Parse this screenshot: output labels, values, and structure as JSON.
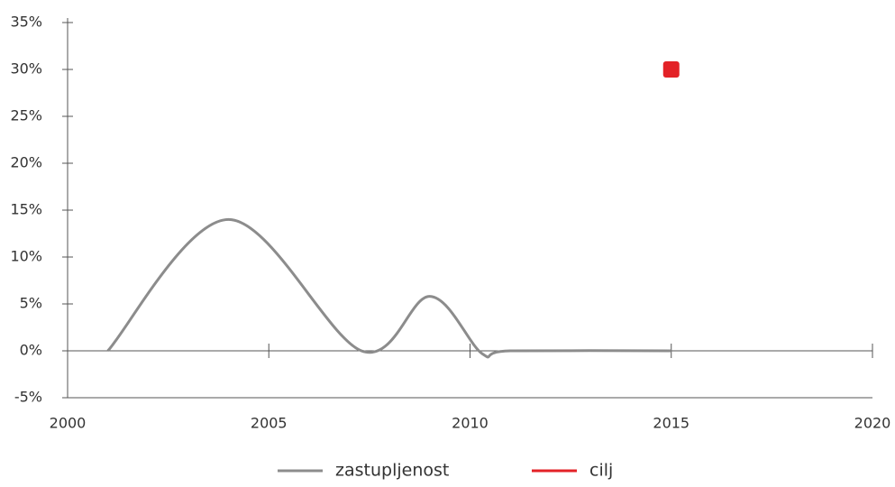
{
  "chart_data": {
    "type": "line",
    "xlim": [
      2000,
      2020
    ],
    "xticks": [
      2000,
      2005,
      2010,
      2015,
      2020
    ],
    "ylim": [
      -5,
      35
    ],
    "yticks": [
      {
        "value": -5,
        "label": "-5%"
      },
      {
        "value": 0,
        "label": "0%"
      },
      {
        "value": 5,
        "label": "5%"
      },
      {
        "value": 10,
        "label": "10%"
      },
      {
        "value": 15,
        "label": "15%"
      },
      {
        "value": 20,
        "label": "20%"
      },
      {
        "value": 25,
        "label": "25%"
      },
      {
        "value": 30,
        "label": "30%"
      },
      {
        "value": 35,
        "label": "35%"
      }
    ],
    "series": [
      {
        "name": "zastupljenost",
        "color": "#8c8c8c",
        "x": [
          2001,
          2004,
          2007.3,
          2009,
          2010.3,
          2011,
          2015
        ],
        "values": [
          0,
          14,
          0,
          5.8,
          -0.3,
          0,
          0
        ]
      },
      {
        "name": "cilj",
        "color": "#e32227",
        "x": [
          2015
        ],
        "values": [
          30
        ]
      }
    ]
  }
}
